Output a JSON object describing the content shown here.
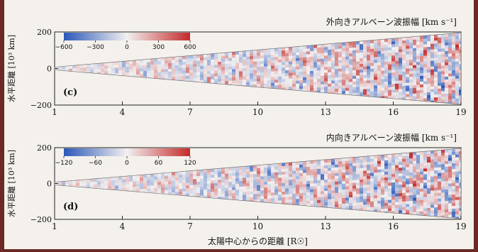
{
  "chart_data": [
    {
      "type": "heatmap",
      "panel_label": "(c)",
      "title": "外向きアルベーン波振幅 [km s⁻¹]",
      "ylabel": "水平距離 [10³ km]",
      "xlabel": "",
      "x_ticks": [
        1,
        4,
        7,
        10,
        13,
        16,
        19
      ],
      "y_ticks": [
        200,
        0,
        -200
      ],
      "xlim": [
        1,
        19
      ],
      "ylim": [
        -200,
        200
      ],
      "colorbar": {
        "min": -600,
        "max": 600,
        "ticks": [
          -600,
          -300,
          0,
          300,
          600
        ],
        "cmap": "blue-white-red"
      },
      "amplitude_range": 600
    },
    {
      "type": "heatmap",
      "panel_label": "(d)",
      "title": "内向きアルベーン波振幅 [km s⁻¹]",
      "ylabel": "水平距離 [10³ km]",
      "xlabel": "太陽中心からの距離 [R☉]",
      "x_ticks": [
        1,
        4,
        7,
        10,
        13,
        16,
        19
      ],
      "y_ticks": [
        200,
        0,
        -200
      ],
      "xlim": [
        1,
        19
      ],
      "ylim": [
        -200,
        200
      ],
      "colorbar": {
        "min": -120,
        "max": 120,
        "ticks": [
          -120,
          -60,
          0,
          60,
          120
        ],
        "cmap": "blue-white-red"
      },
      "amplitude_range": 120
    }
  ],
  "colors": {
    "negative": "#2a57b8",
    "zero": "#f2f0f0",
    "positive": "#c42a2a"
  }
}
